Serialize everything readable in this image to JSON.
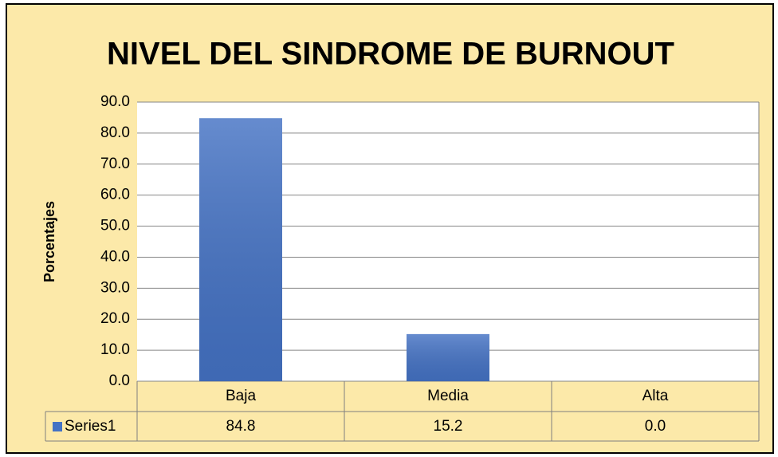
{
  "chart_data": {
    "type": "bar",
    "title": "NIVEL DEL SINDROME DE BURNOUT",
    "y_label": "Porcentajes",
    "categories": [
      "Baja",
      "Media",
      "Alta"
    ],
    "series": [
      {
        "name": "Series1",
        "color": "#4472c4",
        "values": [
          84.8,
          15.2,
          0
        ],
        "value_labels": [
          "84.8",
          "15.2",
          "0.0"
        ]
      }
    ],
    "ylim": [
      0,
      90
    ],
    "yticks": [
      {
        "value": 0,
        "label": "0.0"
      },
      {
        "value": 10,
        "label": "10.0"
      },
      {
        "value": 20,
        "label": "20.0"
      },
      {
        "value": 30,
        "label": "30.0"
      },
      {
        "value": 40,
        "label": "40.0"
      },
      {
        "value": 50,
        "label": "50.0"
      },
      {
        "value": 60,
        "label": "60.0"
      },
      {
        "value": 70,
        "label": "70.0"
      },
      {
        "value": 80,
        "label": "80.0"
      },
      {
        "value": 90,
        "label": "90.0"
      }
    ],
    "grid": true
  }
}
